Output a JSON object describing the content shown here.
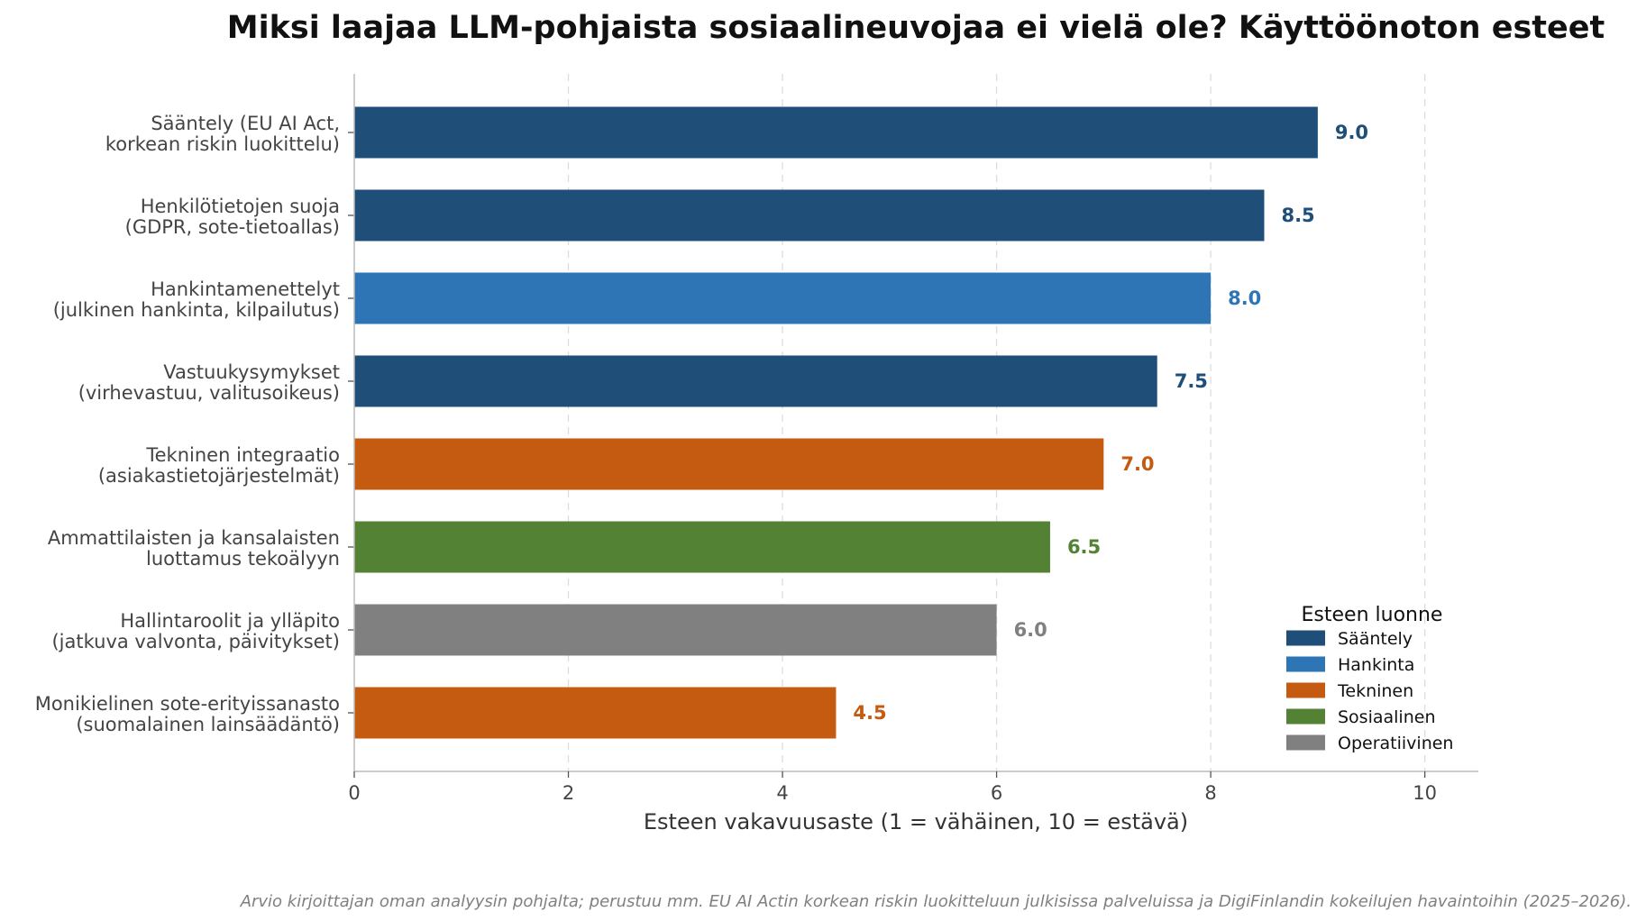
{
  "chart_data": {
    "type": "bar",
    "orientation": "horizontal",
    "title": "Miksi laajaa LLM-pohjaista sosiaalineuvojaa ei vielä ole? Käyttöönoton esteet",
    "xlabel": "Esteen vakavuusaste (1 = vähäinen, 10 = estävä)",
    "ylabel": "",
    "xlim": [
      0,
      10.5
    ],
    "xticks": [
      0,
      2,
      4,
      6,
      8,
      10
    ],
    "grid": "vertical dashed",
    "legend_title": "Esteen luonne",
    "legend_position": "lower-right",
    "categories": [
      {
        "line1": "Sääntely (EU AI Act,",
        "line2": "korkean riskin luokittelu)",
        "value": 9.0,
        "value_label": "9.0",
        "group": "Sääntely"
      },
      {
        "line1": "Henkilötietojen suoja",
        "line2": "(GDPR, sote-tietoallas)",
        "value": 8.5,
        "value_label": "8.5",
        "group": "Sääntely"
      },
      {
        "line1": "Hankintamenettelyt",
        "line2": "(julkinen hankinta, kilpailutus)",
        "value": 8.0,
        "value_label": "8.0",
        "group": "Hankinta"
      },
      {
        "line1": "Vastuukysymykset",
        "line2": "(virhevastuu, valitusoikeus)",
        "value": 7.5,
        "value_label": "7.5",
        "group": "Sääntely"
      },
      {
        "line1": "Tekninen integraatio",
        "line2": "(asiakastietojärjestelmät)",
        "value": 7.0,
        "value_label": "7.0",
        "group": "Tekninen"
      },
      {
        "line1": "Ammattilaisten ja kansalaisten",
        "line2": "luottamus tekoälyyn",
        "value": 6.5,
        "value_label": "6.5",
        "group": "Sosiaalinen"
      },
      {
        "line1": "Hallintaroolit ja ylläpito",
        "line2": "(jatkuva valvonta, päivitykset)",
        "value": 6.0,
        "value_label": "6.0",
        "group": "Operatiivinen"
      },
      {
        "line1": "Monikielinen sote-erityissanasto",
        "line2": "(suomalainen lainsäädäntö)",
        "value": 4.5,
        "value_label": "4.5",
        "group": "Tekninen"
      }
    ],
    "groups": [
      {
        "name": "Sääntely",
        "color": "#1f4e79"
      },
      {
        "name": "Hankinta",
        "color": "#2e75b6"
      },
      {
        "name": "Tekninen",
        "color": "#c55a11"
      },
      {
        "name": "Sosiaalinen",
        "color": "#548235"
      },
      {
        "name": "Operatiivinen",
        "color": "#808080"
      }
    ],
    "footnote": "Arvio kirjoittajan oman analyysin pohjalta; perustuu mm. EU AI Actin korkean riskin luokitteluun julkisissa palveluissa ja DigiFinlandin kokeilujen havaintoihin (2025–2026)."
  }
}
